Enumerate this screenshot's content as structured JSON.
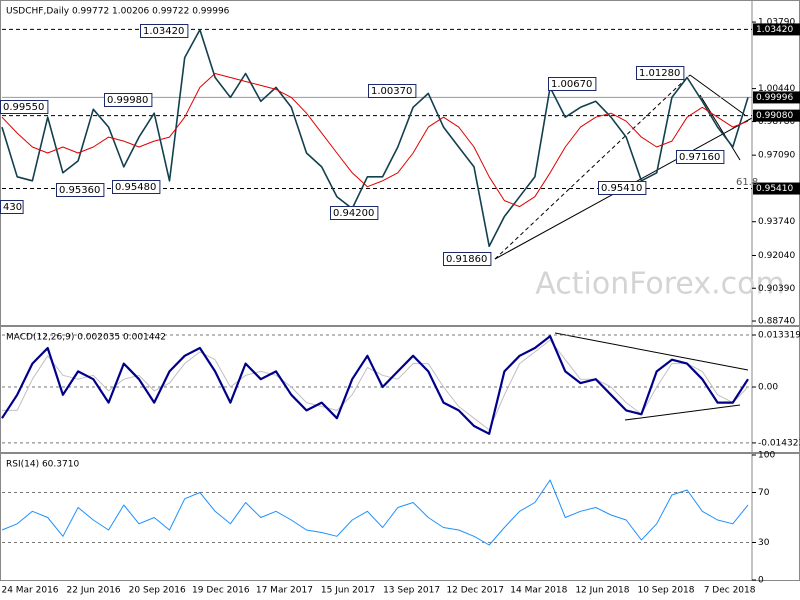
{
  "chart_data": [
    {
      "type": "line",
      "title": "USDCHF,Daily  0.99772 1.00206 0.99722 0.99996",
      "watermark": "ActionForex.com",
      "x_labels": [
        "24 Mar 2016",
        "22 Jun 2016",
        "20 Sep 2016",
        "19 Dec 2016",
        "17 Mar 2017",
        "15 Jun 2017",
        "13 Sep 2017",
        "12 Dec 2017",
        "14 Mar 2018",
        "12 Jun 2018",
        "10 Sep 2018",
        "7 Dec 2018"
      ],
      "ylim": [
        0.8854,
        1.048
      ],
      "yticks": [
        {
          "value": 1.0379,
          "label": "1.03790"
        },
        {
          "value": 1.0044,
          "label": "1.00440"
        },
        {
          "value": 0.9878,
          "label": "0.98780"
        },
        {
          "value": 0.9709,
          "label": "0.97090"
        },
        {
          "value": 0.9374,
          "label": "0.93740"
        },
        {
          "value": 0.9204,
          "label": "0.92040"
        },
        {
          "value": 0.9039,
          "label": "0.90390"
        },
        {
          "value": 0.8874,
          "label": "0.88740"
        }
      ],
      "levels": [
        {
          "value": 1.0342,
          "label": "1.03420",
          "line": "dashed"
        },
        {
          "value": 0.99996,
          "label": "0.99996",
          "line": "solid"
        },
        {
          "value": 0.9908,
          "label": "0.99080",
          "line": "dashed"
        },
        {
          "value": 0.9541,
          "label": "0.95410",
          "line": "dashed"
        }
      ],
      "annotations": [
        "0.99550",
        "0.99980",
        "1.03420",
        "1.00370",
        "1.00670",
        "1.01280",
        "0.97160",
        "0.95410",
        "0.95360",
        "0.95480",
        "0.94200",
        "0.91860",
        "430",
        "61.8"
      ],
      "series": [
        {
          "color": "#12404f",
          "width": 1.6,
          "values": [
            0.985,
            0.96,
            0.958,
            0.99,
            0.962,
            0.968,
            0.994,
            0.985,
            0.965,
            0.98,
            0.992,
            0.958,
            1.02,
            1.034,
            1.01,
            1.0,
            1.012,
            0.998,
            1.005,
            0.995,
            0.972,
            0.965,
            0.95,
            0.944,
            0.96,
            0.96,
            0.975,
            0.995,
            1.002,
            0.985,
            0.975,
            0.965,
            0.925,
            0.94,
            0.95,
            0.96,
            1.005,
            0.99,
            0.995,
            0.998,
            0.99,
            0.98,
            0.958,
            0.962,
            1.0,
            1.01,
            0.998,
            0.985,
            0.975,
            1.0
          ]
        },
        {
          "color": "#e00000",
          "width": 1,
          "values": [
            0.99,
            0.982,
            0.975,
            0.972,
            0.975,
            0.972,
            0.975,
            0.98,
            0.978,
            0.975,
            0.978,
            0.98,
            0.99,
            1.005,
            1.012,
            1.01,
            1.008,
            1.006,
            1.004,
            1.0,
            0.992,
            0.982,
            0.972,
            0.962,
            0.955,
            0.958,
            0.962,
            0.972,
            0.985,
            0.99,
            0.985,
            0.975,
            0.96,
            0.948,
            0.945,
            0.95,
            0.962,
            0.975,
            0.985,
            0.99,
            0.992,
            0.988,
            0.98,
            0.975,
            0.978,
            0.99,
            0.995,
            0.99,
            0.985,
            0.988
          ]
        }
      ]
    },
    {
      "type": "line",
      "title": "MACD(12,26,9) 0.002035 0.001442",
      "ylim": [
        -0.01665,
        0.01511
      ],
      "yticks": [
        {
          "value": 0.013319,
          "label": "0.013319"
        },
        {
          "value": 0,
          "label": "0.00"
        },
        {
          "value": -0.014323,
          "label": "-0.014323"
        }
      ],
      "series": [
        {
          "color": "#c0c0c0",
          "width": 1,
          "values": [
            -0.006,
            -0.006,
            0.002,
            0.008,
            0.003,
            0.002,
            0.003,
            -0.001,
            0.002,
            0.003,
            -0.001,
            0.001,
            0.006,
            0.009,
            0.007,
            0.0,
            0.003,
            0.004,
            0.003,
            0.0,
            -0.004,
            -0.005,
            -0.006,
            -0.002,
            0.005,
            0.003,
            0.002,
            0.006,
            0.006,
            0.0,
            -0.005,
            -0.008,
            -0.011,
            -0.002,
            0.006,
            0.009,
            0.012,
            0.007,
            0.002,
            0.002,
            0.0,
            -0.004,
            -0.007,
            0.0,
            0.006,
            0.006,
            0.004,
            -0.002,
            -0.004,
            0.0
          ]
        },
        {
          "color": "#00008b",
          "width": 2.2,
          "values": [
            -0.008,
            -0.002,
            0.006,
            0.01,
            -0.002,
            0.004,
            0.002,
            -0.004,
            0.006,
            0.002,
            -0.004,
            0.004,
            0.008,
            0.01,
            0.004,
            -0.004,
            0.006,
            0.002,
            0.004,
            -0.002,
            -0.006,
            -0.004,
            -0.008,
            0.002,
            0.008,
            0.0,
            0.004,
            0.008,
            0.004,
            -0.004,
            -0.006,
            -0.01,
            -0.012,
            0.004,
            0.008,
            0.01,
            0.013,
            0.004,
            0.001,
            0.002,
            -0.002,
            -0.006,
            -0.007,
            0.004,
            0.007,
            0.006,
            0.002,
            -0.004,
            -0.004,
            0.002
          ]
        }
      ]
    },
    {
      "type": "line",
      "title": "RSI(14) 60.3710",
      "ylim": [
        0,
        100
      ],
      "yticks": [
        100,
        70,
        30,
        0
      ],
      "series": [
        {
          "color": "#1e90ff",
          "width": 1,
          "values": [
            40,
            45,
            55,
            50,
            35,
            58,
            48,
            40,
            60,
            45,
            50,
            40,
            65,
            70,
            55,
            45,
            62,
            50,
            55,
            48,
            40,
            38,
            35,
            48,
            55,
            42,
            58,
            62,
            50,
            42,
            40,
            35,
            28,
            42,
            55,
            62,
            80,
            50,
            55,
            58,
            52,
            48,
            32,
            45,
            68,
            72,
            55,
            48,
            45,
            60
          ]
        }
      ]
    }
  ]
}
